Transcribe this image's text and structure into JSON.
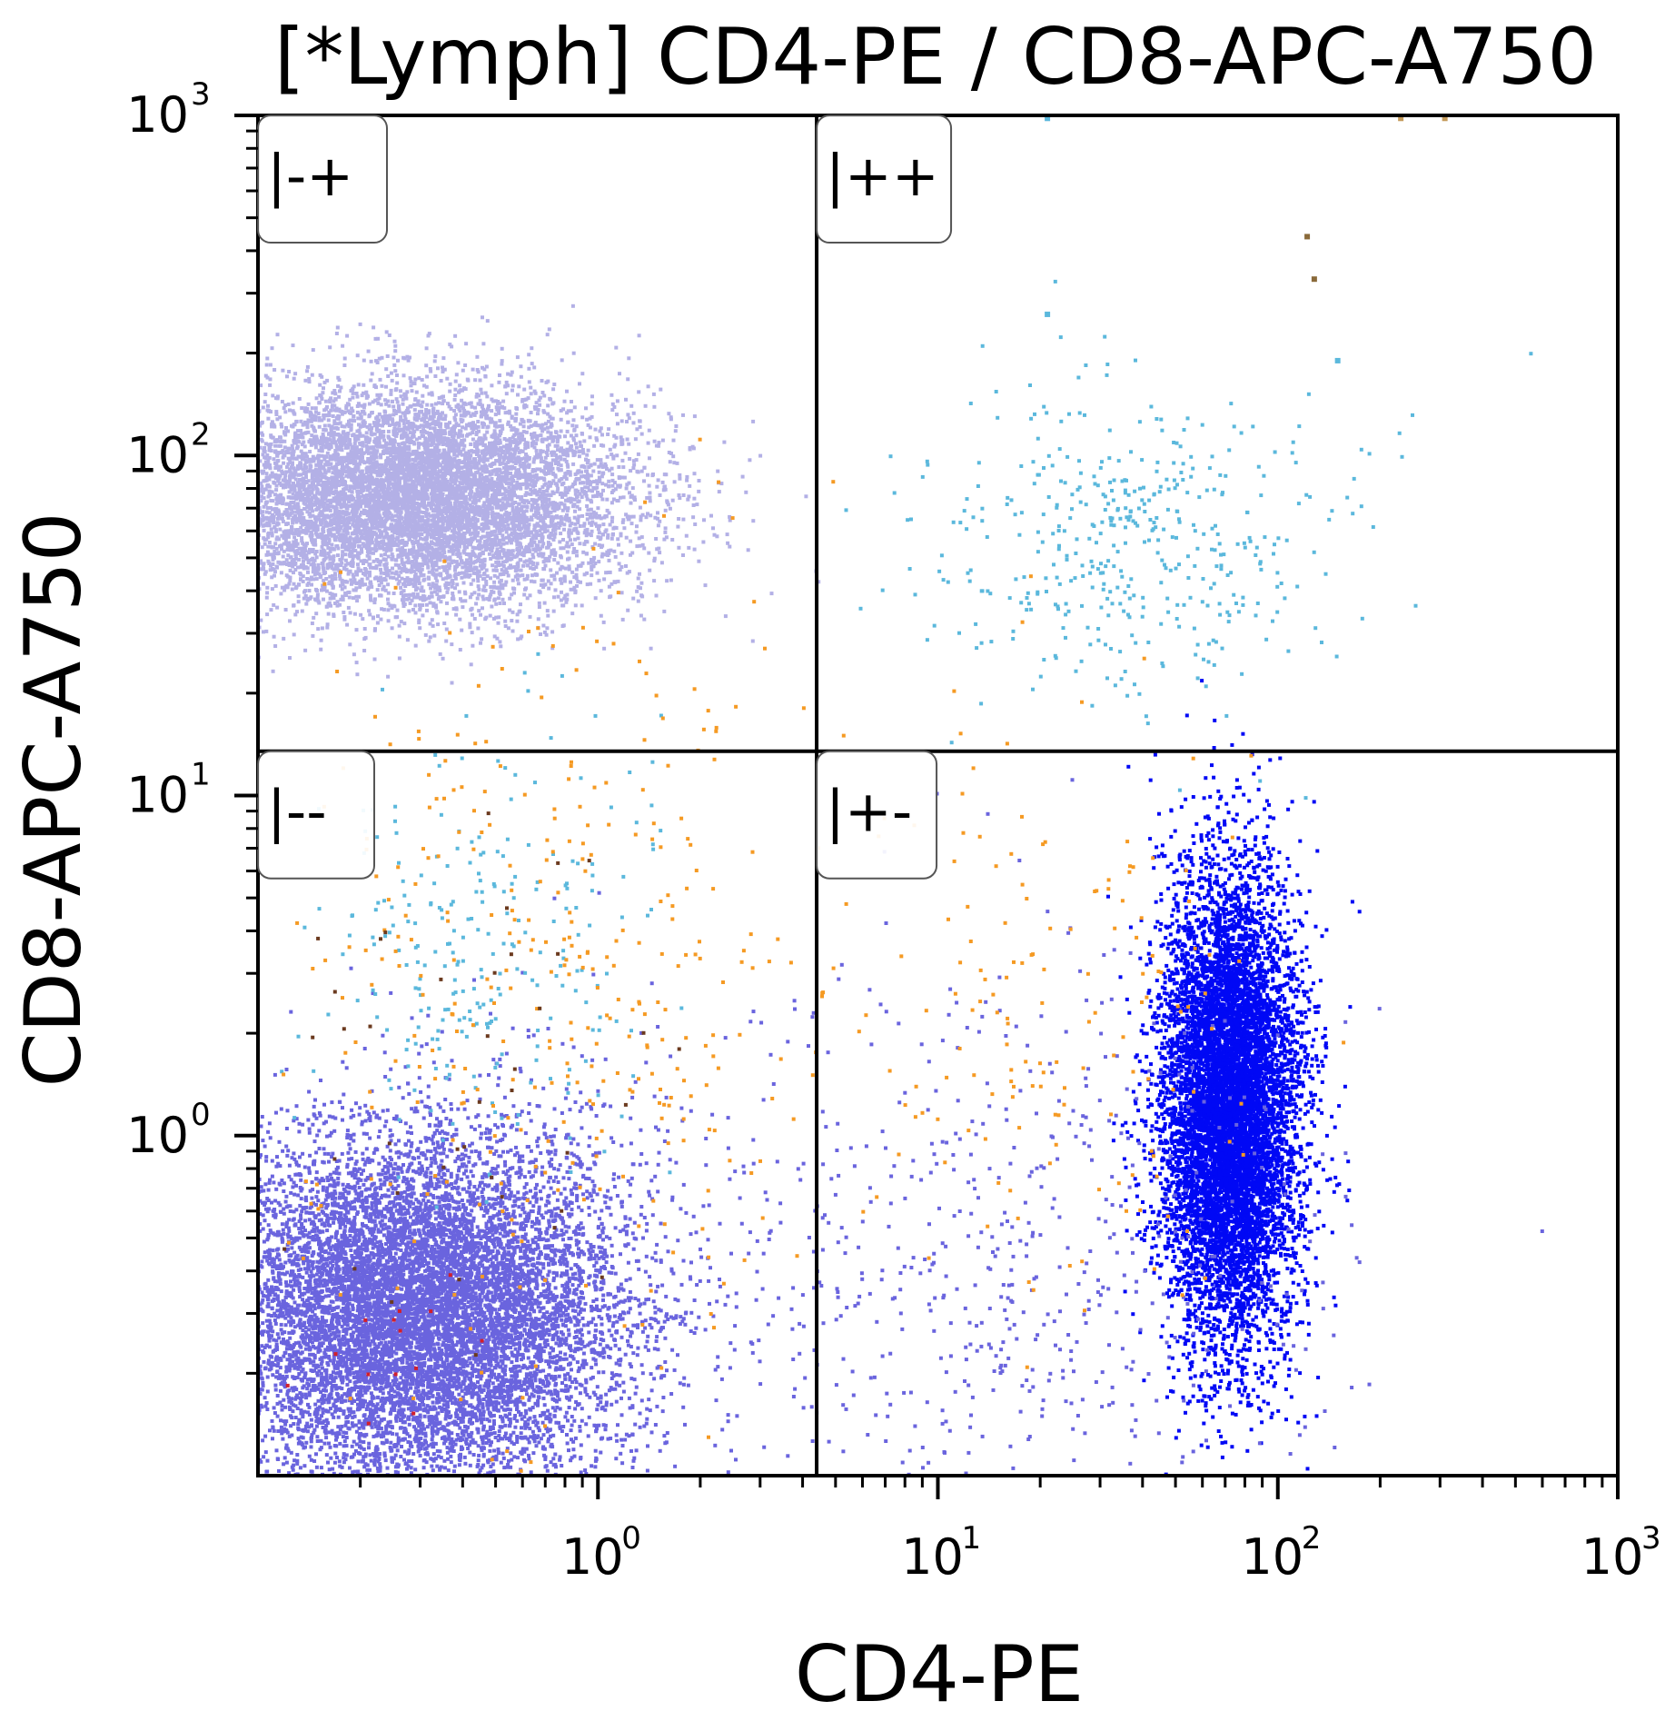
{
  "chart_data": {
    "type": "scatter",
    "title": "[*Lymph] CD4-PE / CD8-APC-A750",
    "xlabel": "CD4-PE",
    "ylabel": "CD8-APC-A750",
    "xscale": "log",
    "yscale": "log",
    "xlim": [
      0.1,
      1000
    ],
    "ylim": [
      0.1,
      1000
    ],
    "xticks": [
      {
        "value": 1,
        "base": "10",
        "exp": "0"
      },
      {
        "value": 10,
        "base": "10",
        "exp": "1"
      },
      {
        "value": 100,
        "base": "10",
        "exp": "2"
      },
      {
        "value": 1000,
        "base": "10",
        "exp": "3"
      }
    ],
    "yticks": [
      {
        "value": 1,
        "base": "10",
        "exp": "0"
      },
      {
        "value": 10,
        "base": "10",
        "exp": "1"
      },
      {
        "value": 100,
        "base": "10",
        "exp": "2"
      },
      {
        "value": 1000,
        "base": "10",
        "exp": "3"
      }
    ],
    "grid": false,
    "quadrant_gate": {
      "x": 4.4,
      "y": 13.5
    },
    "quadrants": [
      {
        "label": "|-+",
        "position": "top-left"
      },
      {
        "label": "|++",
        "position": "top-right"
      },
      {
        "label": "|--",
        "position": "bottom-left"
      },
      {
        "label": "|+-",
        "position": "bottom-right"
      }
    ],
    "populations": [
      {
        "color": "#b3b0e6",
        "n": 9000,
        "center": [
          0.28,
          75
        ],
        "spread": [
          0.32,
          0.16
        ]
      },
      {
        "color": "#6a64de",
        "n": 11000,
        "center": [
          0.3,
          0.3
        ],
        "spread": [
          0.3,
          0.26
        ]
      },
      {
        "color": "#0008f5",
        "n": 9000,
        "center": [
          72,
          1.2
        ],
        "spread": [
          0.1,
          0.34
        ]
      },
      {
        "color": "#6a64de",
        "n": 700,
        "center": [
          12,
          0.4
        ],
        "spread": [
          0.55,
          0.45
        ]
      },
      {
        "color": "#5bb8dc",
        "n": 450,
        "center": [
          35,
          55
        ],
        "spread": [
          0.3,
          0.22
        ]
      },
      {
        "color": "#5bb8dc",
        "n": 260,
        "center": [
          0.45,
          3.5
        ],
        "spread": [
          0.25,
          0.3
        ]
      },
      {
        "color": "#f59a23",
        "n": 380,
        "center": [
          0.8,
          2.5
        ],
        "spread": [
          0.45,
          0.6
        ]
      },
      {
        "color": "#f59a23",
        "n": 140,
        "center": [
          25,
          2.5
        ],
        "spread": [
          0.3,
          0.45
        ]
      },
      {
        "color": "#6b3a1f",
        "n": 40,
        "center": [
          0.4,
          1.5
        ],
        "spread": [
          0.3,
          0.5
        ]
      },
      {
        "color": "#d21f2b",
        "n": 14,
        "center": [
          0.25,
          0.25
        ],
        "spread": [
          0.15,
          0.15
        ]
      }
    ],
    "outlier_events": [
      {
        "x": 230,
        "y": 980,
        "color": "#c49a5a"
      },
      {
        "x": 310,
        "y": 980,
        "color": "#c49a5a"
      },
      {
        "x": 122,
        "y": 440,
        "color": "#8a6a3a"
      },
      {
        "x": 128,
        "y": 330,
        "color": "#8a6a3a"
      },
      {
        "x": 21,
        "y": 980,
        "color": "#5bb8dc"
      },
      {
        "x": 21,
        "y": 260,
        "color": "#5bb8dc"
      },
      {
        "x": 150,
        "y": 190,
        "color": "#5bb8dc"
      }
    ]
  }
}
